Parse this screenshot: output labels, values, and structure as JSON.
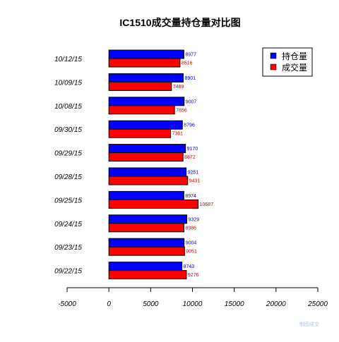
{
  "colors": {
    "hold": "#0000ff",
    "volume": "#ff0000",
    "hold_label": "#0000cc",
    "volume_label": "#cc0000",
    "watermark": "#b0c4de"
  },
  "watermark": "制图成交",
  "chart_data": {
    "type": "bar",
    "orientation": "horizontal",
    "title": "IC1510成交量持仓量对比图",
    "xlabel": "",
    "ylabel": "",
    "categories": [
      "10/12/15",
      "10/09/15",
      "10/08/15",
      "09/30/15",
      "09/29/15",
      "09/28/15",
      "09/25/15",
      "09/24/15",
      "09/23/15",
      "09/22/15"
    ],
    "series": [
      {
        "name": "持仓量",
        "color": "#0000ff",
        "values": [
          8977,
          8901,
          9007,
          8796,
          9170,
          9251,
          8974,
          9329,
          9004,
          8743
        ]
      },
      {
        "name": "成交量",
        "color": "#ff0000",
        "values": [
          8516,
          7489,
          7856,
          7381,
          8872,
          9431,
          10687,
          8986,
          9051,
          9276
        ]
      }
    ],
    "xlim": [
      -5000,
      25000
    ],
    "xticks": [
      "-5000",
      "0",
      "5000",
      "10000",
      "15000",
      "20000",
      "25000"
    ],
    "grid": false,
    "legend_position": "top-right"
  }
}
